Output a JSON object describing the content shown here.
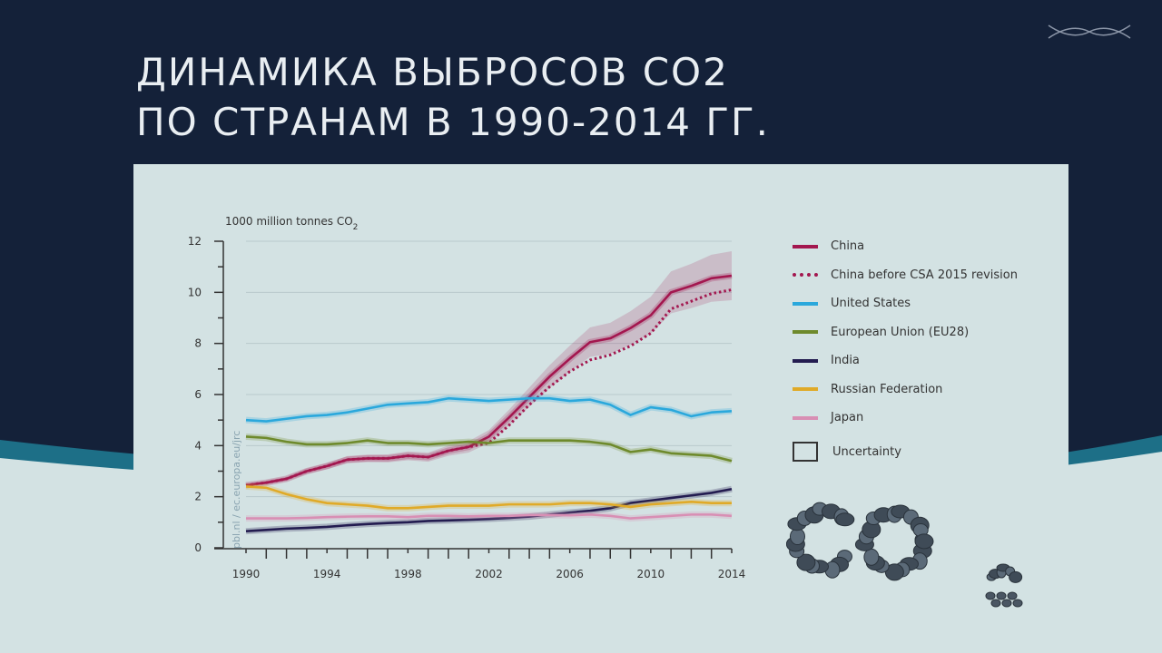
{
  "slide": {
    "title_line1": "ДИНАМИКА ВЫБРОСОВ CO2",
    "title_line2": "ПО СТРАНАМ В 1990-2014 ГГ.",
    "decor_text": "CO2",
    "colors": {
      "background": "#142139",
      "panel": "#d3e2e3",
      "wave": "#1d6f87"
    }
  },
  "chart_data": {
    "type": "line",
    "ylabel": "1000 million tonnes CO",
    "ylabel_sub": "2",
    "source": "pbl.nl / ec.europa.eu/jrc",
    "ylim": [
      0,
      12
    ],
    "xlim": [
      1990,
      2014
    ],
    "yticks": [
      "0",
      "2",
      "4",
      "6",
      "8",
      "10",
      "12"
    ],
    "xticks": [
      "1990",
      "1994",
      "1998",
      "2002",
      "2006",
      "2010",
      "2014"
    ],
    "grid": true,
    "legend_position": "right",
    "x": [
      1990,
      1991,
      1992,
      1993,
      1994,
      1995,
      1996,
      1997,
      1998,
      1999,
      2000,
      2001,
      2002,
      2003,
      2004,
      2005,
      2006,
      2007,
      2008,
      2009,
      2010,
      2011,
      2012,
      2013,
      2014
    ],
    "series": [
      {
        "name": "China",
        "color": "#a3174f",
        "style": "solid",
        "uncertainty": 0.09,
        "values": [
          2.45,
          2.55,
          2.7,
          3.0,
          3.2,
          3.45,
          3.5,
          3.5,
          3.6,
          3.55,
          3.8,
          3.95,
          4.35,
          5.1,
          5.9,
          6.7,
          7.4,
          8.05,
          8.2,
          8.6,
          9.1,
          10.0,
          10.25,
          10.55,
          10.65
        ]
      },
      {
        "name": "China before CSA 2015 revision",
        "color": "#a3174f",
        "style": "dotted",
        "values": [
          2.45,
          2.55,
          2.7,
          3.0,
          3.2,
          3.45,
          3.5,
          3.5,
          3.6,
          3.55,
          3.8,
          3.95,
          4.1,
          4.8,
          5.6,
          6.3,
          6.9,
          7.35,
          7.55,
          7.9,
          8.4,
          9.35,
          9.65,
          9.95,
          10.1
        ]
      },
      {
        "name": "United States",
        "color": "#2aa8dc",
        "style": "solid",
        "values": [
          5.0,
          4.95,
          5.05,
          5.15,
          5.2,
          5.3,
          5.45,
          5.6,
          5.65,
          5.7,
          5.85,
          5.8,
          5.75,
          5.8,
          5.85,
          5.85,
          5.75,
          5.8,
          5.6,
          5.2,
          5.5,
          5.4,
          5.15,
          5.3,
          5.35
        ]
      },
      {
        "name": "European Union (EU28)",
        "color": "#6e8a2c",
        "style": "solid",
        "values": [
          4.35,
          4.3,
          4.15,
          4.05,
          4.05,
          4.1,
          4.2,
          4.1,
          4.1,
          4.05,
          4.1,
          4.15,
          4.1,
          4.2,
          4.2,
          4.2,
          4.2,
          4.15,
          4.05,
          3.75,
          3.85,
          3.7,
          3.65,
          3.6,
          3.4
        ]
      },
      {
        "name": "India",
        "color": "#231c50",
        "style": "solid",
        "values": [
          0.65,
          0.7,
          0.75,
          0.78,
          0.82,
          0.88,
          0.93,
          0.97,
          1.0,
          1.05,
          1.07,
          1.1,
          1.13,
          1.17,
          1.22,
          1.3,
          1.38,
          1.45,
          1.55,
          1.75,
          1.85,
          1.95,
          2.05,
          2.15,
          2.3
        ]
      },
      {
        "name": "Russian Federation",
        "color": "#e0aa28",
        "style": "solid",
        "values": [
          2.4,
          2.35,
          2.1,
          1.9,
          1.75,
          1.7,
          1.65,
          1.55,
          1.55,
          1.6,
          1.65,
          1.65,
          1.65,
          1.7,
          1.7,
          1.7,
          1.75,
          1.75,
          1.7,
          1.6,
          1.7,
          1.75,
          1.8,
          1.75,
          1.75
        ]
      },
      {
        "name": "Japan",
        "color": "#d88fb4",
        "style": "solid",
        "values": [
          1.15,
          1.15,
          1.15,
          1.17,
          1.2,
          1.22,
          1.23,
          1.23,
          1.2,
          1.25,
          1.25,
          1.23,
          1.25,
          1.25,
          1.28,
          1.28,
          1.27,
          1.3,
          1.25,
          1.15,
          1.2,
          1.25,
          1.3,
          1.3,
          1.25
        ]
      }
    ],
    "legend_uncertainty": "Uncertainty"
  }
}
